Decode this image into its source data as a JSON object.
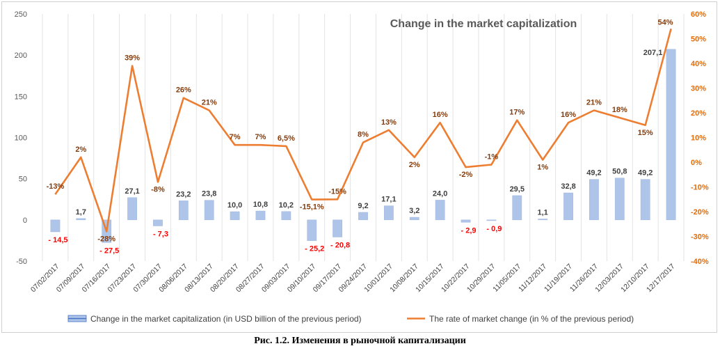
{
  "chart_data": {
    "type": "bar+line",
    "title": "Change in the market capitalization",
    "categories": [
      "07/02/2017",
      "07/09/2017",
      "07/16/2017",
      "07/23/2017",
      "07/30/2017",
      "08/06/2017",
      "08/13/2017",
      "08/20/2017",
      "08/27/2017",
      "09/03/2017",
      "09/10/2017",
      "09/17/2017",
      "09/24/2017",
      "10/01/2017",
      "10/08/2017",
      "10/15/2017",
      "10/22/2017",
      "10/29/2017",
      "11/05/2017",
      "11/12/2017",
      "11/19/2017",
      "11/26/2017",
      "12/03/2017",
      "12/10/2017",
      "12/17/2017"
    ],
    "series": [
      {
        "name": "Change in the market capitalization  (in USD billion of the previous period)",
        "type": "bar",
        "axis": "left",
        "color": "#aec4e8",
        "values": [
          -14.5,
          1.7,
          -27.5,
          27.1,
          -7.3,
          23.2,
          23.8,
          10.0,
          10.8,
          10.2,
          -25.2,
          -20.8,
          9.2,
          17.1,
          3.2,
          24.0,
          -2.9,
          -0.9,
          29.5,
          1.1,
          32.8,
          49.2,
          50.8,
          49.2,
          207.1
        ],
        "labels": [
          "- 14,5",
          "1,7",
          "- 27,5",
          "27,1",
          "- 7,3",
          "23,2",
          "23,8",
          "10,0",
          "10,8",
          "10,2",
          "- 25,2",
          "- 20,8",
          "9,2",
          "17,1",
          "3,2",
          "24,0",
          "- 2,9",
          "- 0,9",
          "29,5",
          "1,1",
          "32,8",
          "49,2",
          "50,8",
          "49,2",
          "207,1"
        ]
      },
      {
        "name": "The rate of market change (in % of the previous period)",
        "type": "line",
        "axis": "right",
        "color": "#ed7d31",
        "values": [
          -13,
          2,
          -28,
          39,
          -8,
          26,
          21,
          7,
          7,
          6.5,
          -15.1,
          -15,
          8,
          13,
          2,
          16,
          -2,
          -1,
          17,
          1,
          16,
          21,
          18,
          15,
          54
        ],
        "labels": [
          "-13%",
          "2%",
          "-28%",
          "39%",
          "-8%",
          "26%",
          "21%",
          "7%",
          "7%",
          "6,5%",
          "-15,1%",
          "-15%",
          "8%",
          "13%",
          "2%",
          "16%",
          "-2%",
          "-1%",
          "17%",
          "1%",
          "16%",
          "21%",
          "18%",
          "15%",
          "54%"
        ]
      }
    ],
    "y_left": {
      "min": -50,
      "max": 250,
      "ticks": [
        -50,
        0,
        50,
        100,
        150,
        200,
        250
      ],
      "tick_labels": [
        "-50",
        "0",
        "50",
        "100",
        "150",
        "200",
        "250"
      ]
    },
    "y_right": {
      "min": -40,
      "max": 60,
      "ticks": [
        -40,
        -30,
        -20,
        -10,
        0,
        10,
        20,
        30,
        40,
        50,
        60
      ],
      "tick_labels": [
        "-40%",
        "-30%",
        "-20%",
        "-10%",
        "0%",
        "10%",
        "20%",
        "30%",
        "40%",
        "50%",
        "60%"
      ]
    },
    "grid": true,
    "legend_position": "bottom",
    "negative_label_color": "#ff0000"
  },
  "caption": "Рис. 1.2. Изменения в рыночной капитализации"
}
